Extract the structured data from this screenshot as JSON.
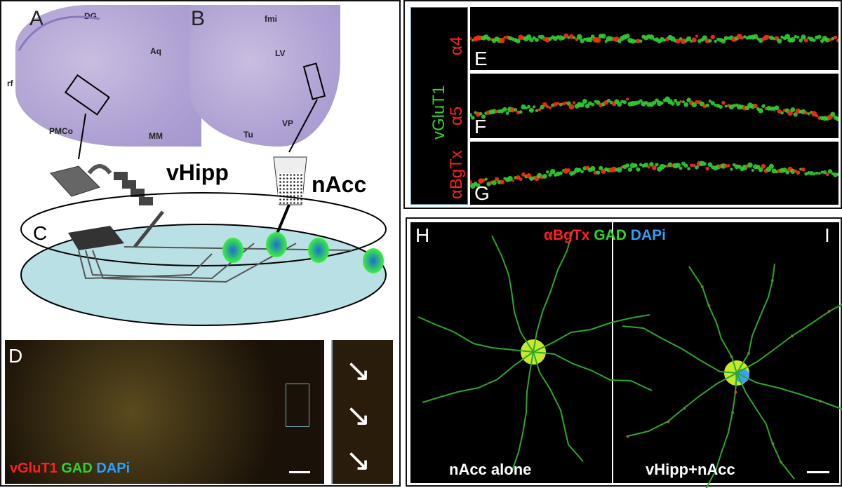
{
  "panel_a": {
    "letter": "A",
    "labels": {
      "dg": "DG",
      "aq": "Aq",
      "rf": "rf",
      "pmco": "PMCo",
      "mm": "MM"
    }
  },
  "panel_b": {
    "letter": "B",
    "labels": {
      "fmi": "fmi",
      "lv": "LV",
      "tu": "Tu",
      "vp": "VP"
    }
  },
  "panel_c": {
    "letter": "C",
    "vhipp": "vHipp",
    "nacc": "nAcc"
  },
  "panel_d": {
    "letter": "D",
    "stain": {
      "vglut1": "vGluT1",
      "gad": "GAD",
      "dapi": "DAPi"
    }
  },
  "panel_efg": {
    "side_green": "vGluT1",
    "side_reds": [
      "α4",
      "α5",
      "αBgTx"
    ],
    "letters": [
      "E",
      "F",
      "G"
    ]
  },
  "panel_hi": {
    "letters": [
      "H",
      "I"
    ],
    "stain": {
      "abgtx": "αBgTx",
      "gad": "GAD",
      "dapi": "DAPi"
    },
    "caption_h": "nAcc alone",
    "caption_i": "vHipp+nAcc"
  },
  "colors": {
    "red": "#ff2020",
    "green": "#2fd32f",
    "blue": "#2aa0ff",
    "nissl": "#b0a2d4",
    "dish": "#b9e0e4"
  }
}
